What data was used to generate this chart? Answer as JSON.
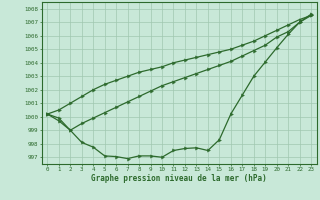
{
  "line_straight": [
    1000.2,
    1000.5,
    1001.0,
    1001.5,
    1002.0,
    1002.4,
    1002.7,
    1003.0,
    1003.3,
    1003.5,
    1003.7,
    1004.0,
    1004.2,
    1004.4,
    1004.6,
    1004.8,
    1005.0,
    1005.3,
    1005.6,
    1006.0,
    1006.4,
    1006.8,
    1007.2,
    1007.5
  ],
  "line_mid": [
    1000.2,
    999.9,
    999.0,
    999.5,
    999.9,
    1000.3,
    1000.7,
    1001.1,
    1001.5,
    1001.9,
    1002.3,
    1002.6,
    1002.9,
    1003.2,
    1003.5,
    1003.8,
    1004.1,
    1004.5,
    1004.9,
    1005.3,
    1005.9,
    1006.3,
    1007.0,
    1007.5
  ],
  "line_dip": [
    1000.2,
    999.7,
    999.0,
    998.1,
    997.75,
    997.1,
    997.05,
    996.9,
    997.1,
    997.1,
    997.0,
    997.5,
    997.65,
    997.7,
    997.5,
    998.3,
    1000.2,
    1001.6,
    1003.0,
    1004.05,
    1005.1,
    1006.1,
    1007.0,
    1007.6
  ],
  "line_color": "#2d6a2d",
  "bg_color": "#c8e8d8",
  "grid_color": "#a0c8b0",
  "ylabel_values": [
    997,
    998,
    999,
    1000,
    1001,
    1002,
    1003,
    1004,
    1005,
    1006,
    1007,
    1008
  ],
  "ylim": [
    996.5,
    1008.5
  ],
  "xlim": [
    -0.5,
    23.5
  ],
  "xlabel": "Graphe pression niveau de la mer (hPa)"
}
